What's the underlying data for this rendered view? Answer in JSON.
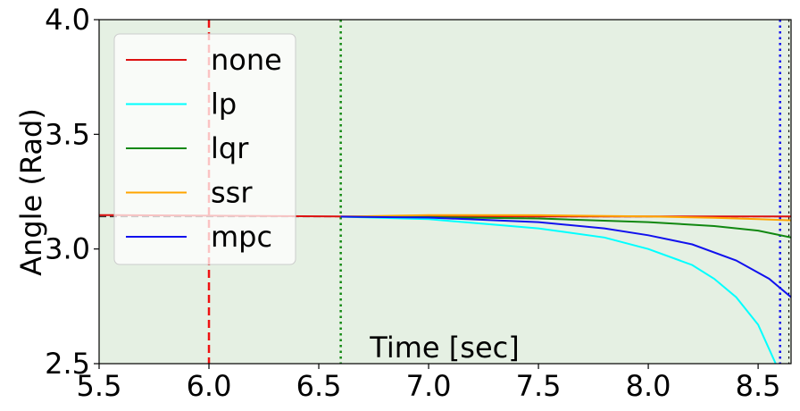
{
  "chart_data": {
    "type": "line",
    "title": "",
    "xlabel": "Time [sec]",
    "ylabel": "Angle (Rad)",
    "xlim": [
      5.5,
      8.65
    ],
    "ylim": [
      2.5,
      4.0
    ],
    "xticks": [
      "5.5",
      "6.0",
      "6.5",
      "7.0",
      "7.5",
      "8.0",
      "8.5"
    ],
    "yticks": [
      "2.5",
      "3.0",
      "3.5",
      "4.0"
    ],
    "grid": false,
    "legend_position": "top-left",
    "background_color": "#e5f0e3",
    "vlines": [
      {
        "x": 6.0,
        "color": "#ee1111",
        "style": "dashed"
      },
      {
        "x": 6.6,
        "color": "#118811",
        "style": "dotted"
      },
      {
        "x": 8.6,
        "color": "#1111ee",
        "style": "dotted"
      },
      {
        "x": 8.64,
        "color": "#000000",
        "style": "dotted"
      }
    ],
    "reference_line": {
      "y": 3.1416,
      "color": "#333333",
      "style": "dashed"
    },
    "series": [
      {
        "name": "none",
        "color": "#dd1111",
        "x": [
          5.5,
          6.0,
          6.6,
          7.0,
          7.5,
          8.0,
          8.5,
          8.65
        ],
        "y": [
          3.148,
          3.145,
          3.142,
          3.142,
          3.142,
          3.142,
          3.142,
          3.142
        ]
      },
      {
        "name": "lp",
        "color": "#00ffff",
        "x": [
          6.6,
          7.0,
          7.5,
          7.8,
          8.0,
          8.2,
          8.3,
          8.4,
          8.5,
          8.58
        ],
        "y": [
          3.141,
          3.13,
          3.09,
          3.05,
          3.0,
          2.93,
          2.87,
          2.79,
          2.67,
          2.5
        ]
      },
      {
        "name": "lqr",
        "color": "#118811",
        "x": [
          6.6,
          7.0,
          7.5,
          8.0,
          8.3,
          8.5,
          8.65
        ],
        "y": [
          3.141,
          3.139,
          3.133,
          3.117,
          3.1,
          3.08,
          3.05
        ]
      },
      {
        "name": "ssr",
        "color": "#ffa500",
        "x": [
          6.6,
          7.0,
          7.5,
          8.0,
          8.3,
          8.5,
          8.65
        ],
        "y": [
          3.141,
          3.148,
          3.147,
          3.142,
          3.136,
          3.13,
          3.125
        ]
      },
      {
        "name": "mpc",
        "color": "#1111ee",
        "x": [
          6.6,
          7.0,
          7.5,
          7.8,
          8.0,
          8.2,
          8.4,
          8.55,
          8.65
        ],
        "y": [
          3.141,
          3.137,
          3.117,
          3.09,
          3.06,
          3.02,
          2.95,
          2.87,
          2.79
        ]
      }
    ]
  }
}
